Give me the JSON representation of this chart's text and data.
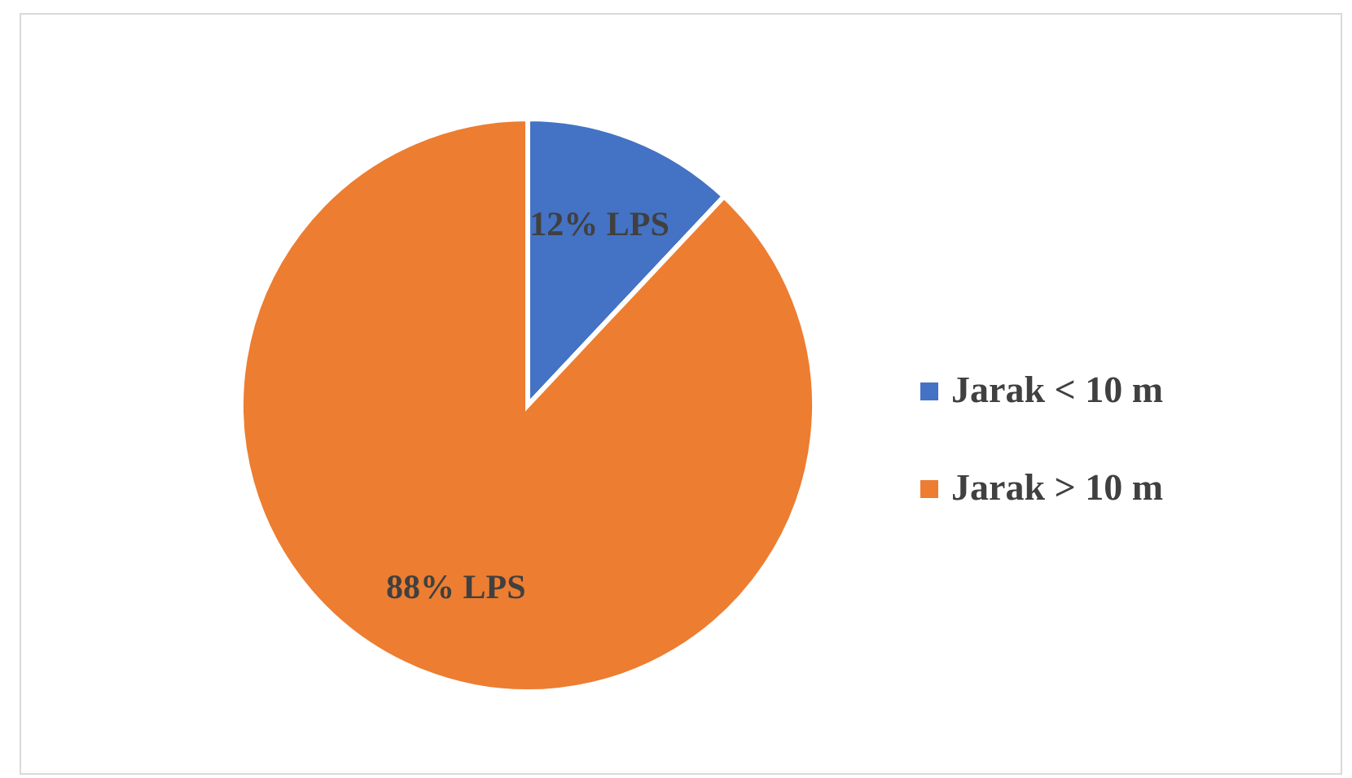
{
  "chart_data": {
    "type": "pie",
    "categories": [
      "Jarak < 10 m",
      "Jarak > 10 m"
    ],
    "values": [
      12,
      88
    ],
    "colors": [
      "#4472c4",
      "#ed7d31"
    ],
    "value_labels": [
      "12% LPS",
      "88% LPS"
    ],
    "legend": "right"
  }
}
